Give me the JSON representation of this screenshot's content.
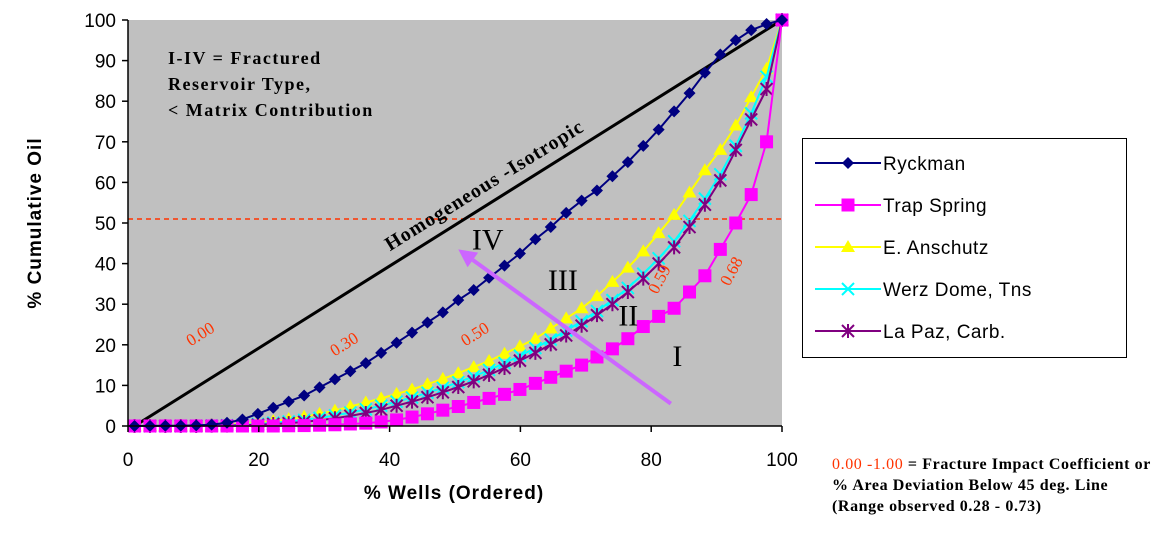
{
  "chart_data": {
    "type": "line",
    "xlabel": "% Wells (Ordered)",
    "ylabel": "% Cumulative Oil",
    "xlim": [
      0,
      100
    ],
    "ylim": [
      0,
      100
    ],
    "x_ticks": [
      "0",
      "20",
      "40",
      "60",
      "80",
      "100"
    ],
    "y_ticks": [
      "0",
      "10",
      "20",
      "30",
      "40",
      "50",
      "60",
      "70",
      "80",
      "90",
      "100"
    ],
    "grid": false,
    "plot_background": "#c0c0c0",
    "legend_position": "right",
    "reference_line": {
      "label": "Homogeneous -Isotropic",
      "points": [
        [
          1,
          0
        ],
        [
          100,
          100
        ]
      ]
    },
    "threshold_line": {
      "y": 51,
      "style": "dashed",
      "color": "#ff3300"
    },
    "series": [
      {
        "name": "Ryckman",
        "color": "#000080",
        "marker": "diamond",
        "x": [
          1,
          3.36,
          5.71,
          8.07,
          10.43,
          12.79,
          15.14,
          17.5,
          19.86,
          22.21,
          24.57,
          26.93,
          29.29,
          31.64,
          34,
          36.36,
          38.71,
          41.07,
          43.43,
          45.79,
          48.14,
          50.5,
          52.86,
          55.21,
          57.57,
          59.93,
          62.29,
          64.64,
          67,
          69.36,
          71.71,
          74.07,
          76.43,
          78.79,
          81.14,
          83.5,
          85.86,
          88.21,
          90.57,
          92.93,
          95.29,
          97.64,
          100
        ],
        "y": [
          0,
          0.02,
          0.05,
          0.08,
          0.16,
          0.35,
          0.8,
          1.6,
          3,
          4.5,
          6,
          7.5,
          9.5,
          11.5,
          13.5,
          15.5,
          18,
          20.5,
          23,
          25.5,
          28,
          31,
          33.5,
          36.5,
          39.5,
          42.5,
          46,
          49,
          52.5,
          55.5,
          58,
          61.5,
          65,
          69,
          73,
          77.5,
          82,
          87,
          91.5,
          95,
          97.5,
          99,
          100
        ]
      },
      {
        "name": "Trap Spring",
        "color": "#ff00ff",
        "marker": "square",
        "x": [
          1,
          3.36,
          5.71,
          8.07,
          10.43,
          12.79,
          15.14,
          17.5,
          19.86,
          22.21,
          24.57,
          26.93,
          29.29,
          31.64,
          34,
          36.36,
          38.71,
          41.07,
          43.43,
          45.79,
          48.14,
          50.5,
          52.86,
          55.21,
          57.57,
          59.93,
          62.29,
          64.64,
          67,
          69.36,
          71.71,
          74.07,
          76.43,
          78.79,
          81.14,
          83.5,
          85.86,
          88.21,
          90.57,
          92.93,
          95.29,
          97.64,
          100
        ],
        "y": [
          0,
          0,
          0,
          0,
          0,
          0,
          0,
          0,
          0,
          0,
          0.05,
          0.1,
          0.2,
          0.3,
          0.5,
          0.7,
          1,
          1.5,
          2.2,
          3,
          3.9,
          4.8,
          5.8,
          6.8,
          7.8,
          9,
          10.5,
          12,
          13.5,
          15,
          17,
          19,
          21.5,
          24.5,
          27,
          29,
          33,
          37,
          43.5,
          50,
          57,
          70,
          100
        ]
      },
      {
        "name": "E. Anschutz",
        "color": "#ffff00",
        "marker": "triangle",
        "x": [
          1,
          3.36,
          5.71,
          8.07,
          10.43,
          12.79,
          15.14,
          17.5,
          19.86,
          22.21,
          24.57,
          26.93,
          29.29,
          31.64,
          34,
          36.36,
          38.71,
          41.07,
          43.43,
          45.79,
          48.14,
          50.5,
          52.86,
          55.21,
          57.57,
          59.93,
          62.29,
          64.64,
          67,
          69.36,
          71.71,
          74.07,
          76.43,
          78.79,
          81.14,
          83.5,
          85.86,
          88.21,
          90.57,
          92.93,
          95.29,
          97.64,
          100
        ],
        "y": [
          0,
          0,
          0,
          0.05,
          0.1,
          0.2,
          0.3,
          0.5,
          0.8,
          1.2,
          1.7,
          2.3,
          3,
          3.8,
          4.8,
          5.8,
          6.8,
          7.9,
          9,
          10.3,
          11.6,
          13,
          14.5,
          16,
          17.8,
          19.6,
          21.5,
          24,
          26.5,
          29,
          32,
          35.5,
          39,
          43,
          47.5,
          52,
          57.5,
          63,
          68,
          74,
          81,
          88,
          100
        ]
      },
      {
        "name": "Werz Dome, Tns",
        "color": "#00ffff",
        "marker": "x",
        "x": [
          1,
          3.36,
          5.71,
          8.07,
          10.43,
          12.79,
          15.14,
          17.5,
          19.86,
          22.21,
          24.57,
          26.93,
          29.29,
          31.64,
          34,
          36.36,
          38.71,
          41.07,
          43.43,
          45.79,
          48.14,
          50.5,
          52.86,
          55.21,
          57.57,
          59.93,
          62.29,
          64.64,
          67,
          69.36,
          71.71,
          74.07,
          76.43,
          78.79,
          81.14,
          83.5,
          85.86,
          88.21,
          90.57,
          92.93,
          95.29,
          97.64,
          100
        ],
        "y": [
          0,
          0,
          0,
          0,
          0.05,
          0.1,
          0.2,
          0.3,
          0.5,
          0.8,
          1.1,
          1.5,
          2,
          2.6,
          3.3,
          4.1,
          5,
          6,
          7,
          8.2,
          9.4,
          10.8,
          12.2,
          13.8,
          15.5,
          17.3,
          19.2,
          21.3,
          23.5,
          25.8,
          28.3,
          31,
          34,
          37.5,
          41.3,
          45.5,
          50.5,
          56,
          62,
          69,
          77,
          86,
          100
        ]
      },
      {
        "name": "La Paz, Carb.",
        "color": "#800080",
        "marker": "star",
        "x": [
          1,
          3.36,
          5.71,
          8.07,
          10.43,
          12.79,
          15.14,
          17.5,
          19.86,
          22.21,
          24.57,
          26.93,
          29.29,
          31.64,
          34,
          36.36,
          38.71,
          41.07,
          43.43,
          45.79,
          48.14,
          50.5,
          52.86,
          55.21,
          57.57,
          59.93,
          62.29,
          64.64,
          67,
          69.36,
          71.71,
          74.07,
          76.43,
          78.79,
          81.14,
          83.5,
          85.86,
          88.21,
          90.57,
          92.93,
          95.29,
          97.64,
          100
        ],
        "y": [
          0,
          0,
          0,
          0,
          0,
          0.05,
          0.1,
          0.2,
          0.3,
          0.5,
          0.7,
          1,
          1.4,
          1.9,
          2.5,
          3.2,
          4,
          5,
          6,
          7.1,
          8.3,
          9.6,
          11,
          12.6,
          14.3,
          16.1,
          18,
          20.1,
          22.3,
          24.7,
          27.3,
          30,
          33,
          36.3,
          40,
          44,
          49,
          54.5,
          60.5,
          68,
          75.5,
          83,
          100
        ]
      }
    ],
    "annotations": {
      "box_note": [
        "I-IV = Fractured",
        "Reservoir Type,",
        "< Matrix Contribution"
      ],
      "homogeneous_label": "Homogeneous -Isotropic",
      "coefficients": [
        {
          "text": "0.00",
          "x": 11.5,
          "y": 21.5
        },
        {
          "text": "0.30",
          "x": 33.5,
          "y": 19
        },
        {
          "text": "0.50",
          "x": 53.5,
          "y": 21.5
        },
        {
          "text": "0.59",
          "x": 82,
          "y": 35.5
        },
        {
          "text": "0.68",
          "x": 93,
          "y": 37.5
        }
      ],
      "types": [
        {
          "text": "IV",
          "x": 55,
          "y": 43.5
        },
        {
          "text": "III",
          "x": 66.5,
          "y": 33.5
        },
        {
          "text": "II",
          "x": 76.5,
          "y": 24.8
        },
        {
          "text": "I",
          "x": 84,
          "y": 14.8
        }
      ],
      "arrow": {
        "from": [
          83,
          5.5
        ],
        "to": [
          50.5,
          43.5
        ],
        "color": "#cc66ff"
      }
    }
  },
  "legend_entries": [
    "Ryckman",
    "Trap Spring",
    "E. Anschutz",
    "Werz Dome, Tns",
    "La Paz, Carb."
  ],
  "footnote": {
    "range": "0.00 -1.00",
    "text": " = Fracture Impact Coefficient or % Area Deviation Below 45 deg. Line (Range observed 0.28 - 0.73)"
  }
}
